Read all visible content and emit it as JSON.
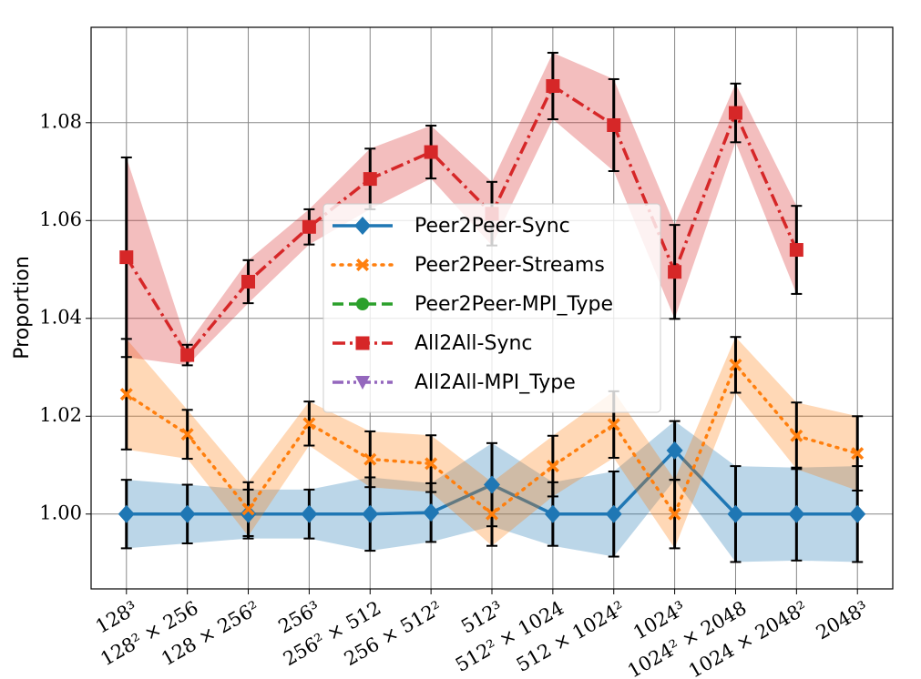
{
  "chart_data": {
    "type": "line",
    "y_label": "Proportion",
    "categories": [
      "128³",
      "128² × 256",
      "128 × 256²",
      "256³",
      "256² × 512",
      "256 × 512²",
      "512³",
      "512² × 1024",
      "512 × 1024²",
      "1024³",
      "1024² × 2048",
      "1024 × 2048²",
      "2048³"
    ],
    "ylim": [
      0.9847,
      1.0995
    ],
    "yticks": [
      {
        "value": 1.0,
        "label": "1.00"
      },
      {
        "value": 1.02,
        "label": "1.02"
      },
      {
        "value": 1.04,
        "label": "1.04"
      },
      {
        "value": 1.06,
        "label": "1.06"
      },
      {
        "value": 1.08,
        "label": "1.08"
      }
    ],
    "grid": true,
    "legend": "center",
    "series": [
      {
        "name": "Peer2Peer-Sync",
        "color": "#1f77b4",
        "linestyle": "solid",
        "marker": "diamond",
        "values": [
          1.0,
          1.0,
          1.0,
          1.0,
          1.0,
          1.0003,
          1.006,
          1.0,
          1.0,
          1.013,
          1.0,
          1.0,
          1.0
        ],
        "errors": [
          0.007,
          0.006,
          0.005,
          0.005,
          0.0075,
          0.006,
          0.0085,
          0.0065,
          0.0087,
          0.006,
          0.0098,
          0.0095,
          0.0098
        ]
      },
      {
        "name": "Peer2Peer-Streams",
        "color": "#ff7f0e",
        "linestyle": "dotted",
        "marker": "x",
        "values": [
          1.0245,
          1.0163,
          1.001,
          1.0185,
          1.0112,
          1.0103,
          1.0,
          1.0098,
          1.0183,
          1.0,
          1.0305,
          1.016,
          1.0124
        ],
        "errors": [
          0.0113,
          0.005,
          0.0055,
          0.0045,
          0.0057,
          0.0058,
          0.0065,
          0.0062,
          0.0068,
          0.007,
          0.0057,
          0.0068,
          0.0076
        ]
      },
      {
        "name": "Peer2Peer-MPI_Type",
        "color": "#2ca02c",
        "linestyle": "dashed",
        "marker": "circle",
        "values": [
          null,
          null,
          null,
          null,
          null,
          null,
          null,
          null,
          null,
          null,
          null,
          null,
          null
        ],
        "errors": [
          null,
          null,
          null,
          null,
          null,
          null,
          null,
          null,
          null,
          null,
          null,
          null,
          null
        ]
      },
      {
        "name": "All2All-Sync",
        "color": "#d62728",
        "linestyle": "dashdot",
        "marker": "square",
        "values": [
          1.0525,
          1.0325,
          1.0475,
          1.0587,
          1.0685,
          1.074,
          1.0614,
          1.0875,
          1.0795,
          1.0495,
          1.082,
          1.054,
          null
        ],
        "errors": [
          0.0204,
          0.0021,
          0.0044,
          0.0036,
          0.0062,
          0.0054,
          0.0065,
          0.0068,
          0.0094,
          0.0096,
          0.006,
          0.009,
          null
        ]
      },
      {
        "name": "All2All-MPI_Type",
        "color": "#9467bd",
        "linestyle": "dashdotdot",
        "marker": "triangle-down",
        "values": [
          null,
          null,
          null,
          null,
          null,
          null,
          null,
          null,
          null,
          null,
          null,
          null,
          null
        ],
        "errors": [
          null,
          null,
          null,
          null,
          null,
          null,
          null,
          null,
          null,
          null,
          null,
          null,
          null
        ]
      }
    ]
  }
}
